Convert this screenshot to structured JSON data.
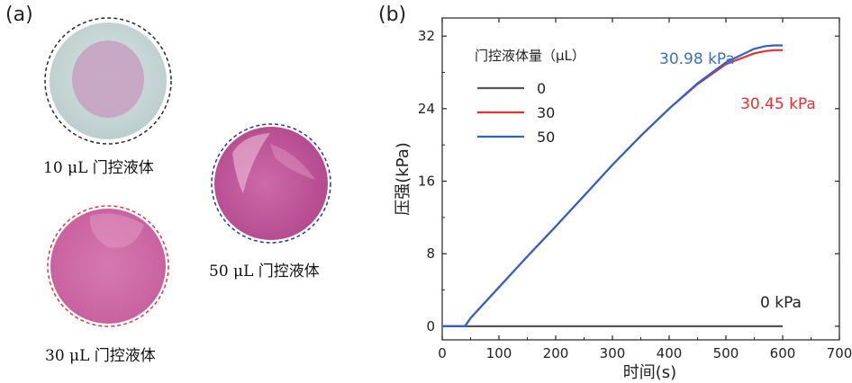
{
  "panel_a": {
    "label": "(a)",
    "samples": [
      {
        "caption": "10 μL 门控液体",
        "ring_color": "#2a2a2a",
        "base_color": "#cfdedd",
        "inner_color": "#c9a6c4"
      },
      {
        "caption": "50 μL 门控液体",
        "ring_color": "#2a3a8c",
        "base_color": "#d87ab6",
        "inner_color": "#c45aa0"
      },
      {
        "caption": "30 μL 门控液体",
        "ring_color": "#e23a3a",
        "base_color": "#d98ab6",
        "inner_color": "#cf6aa8"
      }
    ]
  },
  "panel_b": {
    "label": "(b)"
  },
  "chart_data": {
    "type": "line",
    "xlabel": "时间(s)",
    "ylabel": "压强(kPa)",
    "xlim": [
      0,
      700
    ],
    "ylim": [
      -1.5,
      34
    ],
    "xticks": [
      0,
      100,
      200,
      300,
      400,
      500,
      600,
      700
    ],
    "yticks": [
      0,
      8,
      16,
      24,
      32
    ],
    "legend": {
      "title": "门控液体量（μL）",
      "placement": "top-left"
    },
    "series": [
      {
        "name": "0",
        "color": "#555555",
        "x": [
          0,
          600
        ],
        "y": [
          0,
          0
        ]
      },
      {
        "name": "30",
        "color": "#e8322f",
        "x": [
          0,
          40,
          50,
          100,
          150,
          200,
          250,
          300,
          350,
          400,
          450,
          500,
          550,
          570,
          585,
          600
        ],
        "y": [
          0,
          0,
          0.9,
          4.3,
          7.7,
          11.0,
          14.4,
          17.8,
          21.0,
          24.0,
          26.7,
          28.9,
          30.1,
          30.35,
          30.45,
          30.45
        ]
      },
      {
        "name": "50",
        "color": "#2f63c4",
        "x": [
          0,
          40,
          50,
          100,
          150,
          200,
          250,
          300,
          350,
          400,
          450,
          500,
          550,
          570,
          585,
          600
        ],
        "y": [
          0,
          0,
          0.9,
          4.3,
          7.7,
          11.0,
          14.4,
          17.8,
          21.0,
          24.0,
          26.8,
          29.1,
          30.6,
          30.9,
          30.98,
          30.98
        ]
      }
    ],
    "annotations": [
      {
        "text": "30.98 kPa",
        "color": "#3a6fc4"
      },
      {
        "text": "30.45 kPa",
        "color": "#e8322f"
      },
      {
        "text": "0 kPa",
        "color": "#222222"
      }
    ]
  }
}
